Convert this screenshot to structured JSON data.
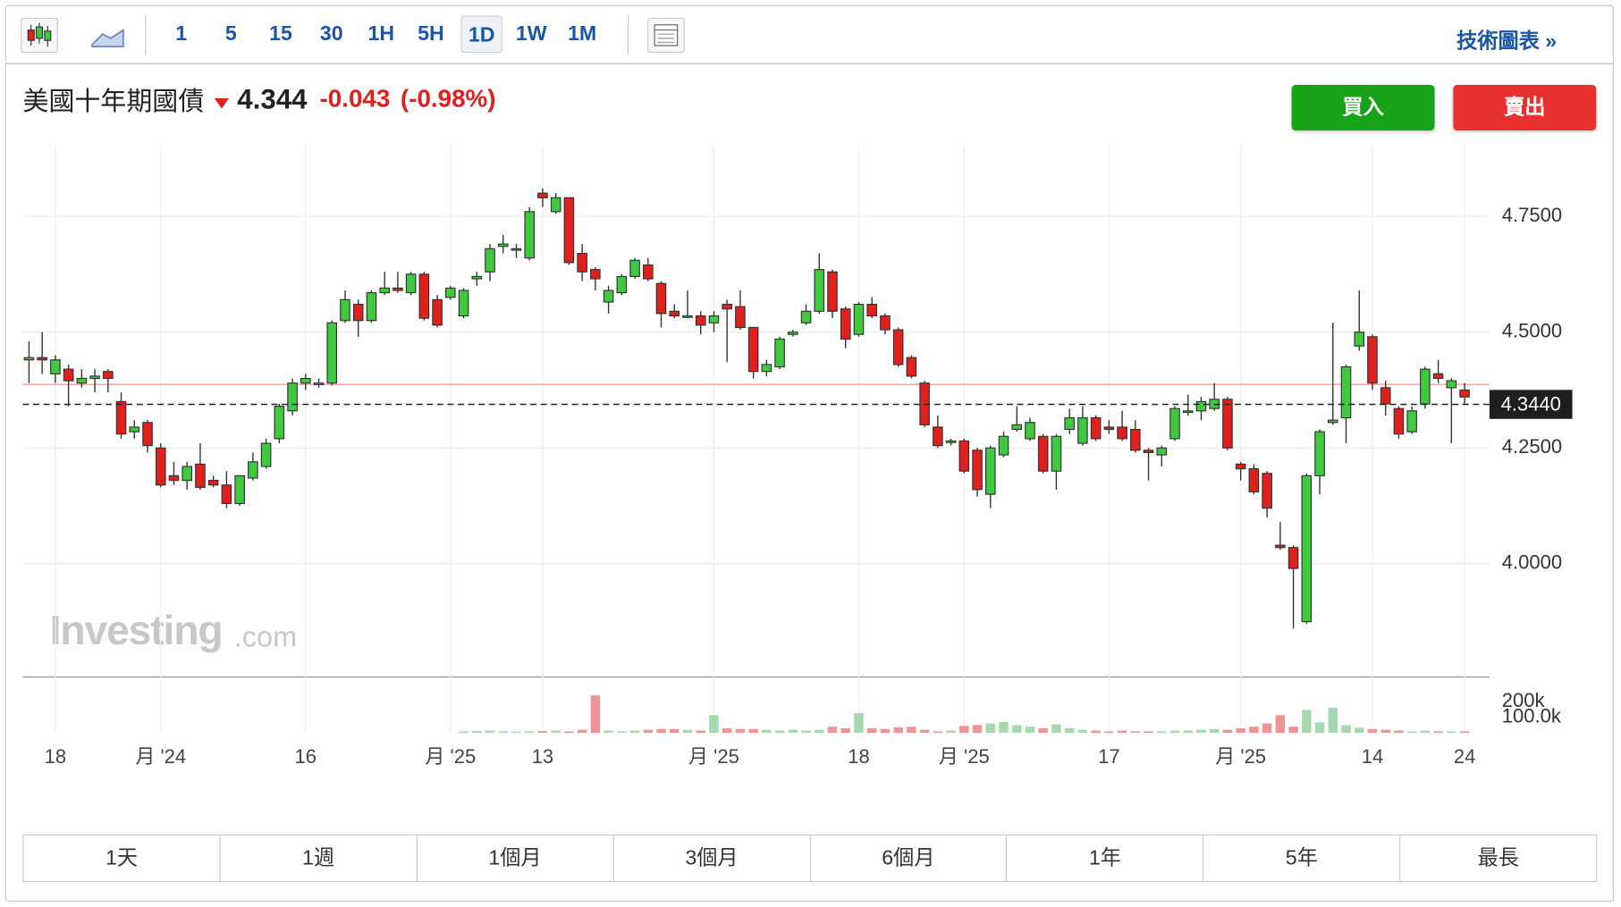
{
  "toolbar": {
    "intervals": [
      "1",
      "5",
      "15",
      "30",
      "1H",
      "5H",
      "1D",
      "1W",
      "1M"
    ],
    "link": "技術圖表 »"
  },
  "header": {
    "name": "美國十年期國債",
    "price": "4.344",
    "change": "-0.043",
    "change_pct": "(-0.98%)",
    "buy": "買入",
    "sell": "賣出"
  },
  "watermark": [
    "Investing",
    ".com"
  ],
  "ranges": [
    "1天",
    "1週",
    "1個月",
    "3個月",
    "6個月",
    "1年",
    "5年",
    "最長"
  ],
  "chart_data": {
    "type": "candlestick",
    "categories": [
      null,
      null,
      "18",
      null,
      null,
      null,
      null,
      null,
      null,
      null,
      "月 '24",
      null,
      null,
      null,
      null,
      null,
      null,
      null,
      null,
      null,
      null,
      "16",
      null,
      null,
      null,
      null,
      null,
      null,
      null,
      null,
      null,
      null,
      "月 '25",
      null,
      null,
      null,
      null,
      null,
      null,
      "13",
      null,
      null,
      null,
      null,
      null,
      null,
      null,
      null,
      null,
      null,
      null,
      null,
      "月 '25",
      null,
      null,
      null,
      null,
      null,
      null,
      null,
      null,
      null,
      null,
      "18",
      null,
      null,
      null,
      null,
      null,
      null,
      null,
      "月 '25",
      null,
      null,
      null,
      null,
      null,
      null,
      null,
      null,
      null,
      null,
      "17",
      null,
      null,
      null,
      null,
      null,
      null,
      null,
      null,
      null,
      "月 '25",
      null,
      null,
      null,
      null,
      null,
      null,
      null,
      null,
      null,
      "14",
      null,
      null,
      null,
      null,
      null,
      null,
      "24"
    ],
    "open": [
      4.44,
      4.445,
      4.41,
      4.42,
      4.39,
      4.4,
      4.415,
      4.35,
      4.285,
      4.305,
      4.25,
      4.19,
      4.18,
      4.215,
      4.18,
      4.17,
      4.13,
      4.185,
      4.21,
      4.27,
      4.33,
      4.39,
      4.39,
      4.39,
      4.525,
      4.56,
      4.525,
      4.585,
      4.595,
      4.585,
      4.625,
      4.57,
      4.575,
      4.535,
      4.615,
      4.63,
      4.685,
      4.68,
      4.66,
      4.8,
      4.76,
      4.79,
      4.67,
      4.635,
      4.565,
      4.585,
      4.62,
      4.645,
      4.605,
      4.545,
      4.535,
      4.535,
      4.52,
      4.56,
      4.555,
      4.51,
      4.415,
      4.425,
      4.495,
      4.52,
      4.545,
      4.63,
      4.55,
      4.495,
      4.56,
      4.535,
      4.505,
      4.445,
      4.39,
      4.295,
      4.265,
      4.265,
      4.245,
      4.15,
      4.235,
      4.29,
      4.27,
      4.275,
      4.2,
      4.29,
      4.26,
      4.315,
      4.295,
      4.295,
      4.29,
      4.245,
      4.235,
      4.27,
      4.33,
      4.33,
      4.335,
      4.355,
      4.215,
      4.205,
      4.195,
      4.04,
      4.035,
      3.875,
      4.19,
      4.305,
      4.315,
      4.47,
      4.49,
      4.38,
      4.335,
      4.285,
      4.345,
      4.41,
      4.38,
      4.375
    ],
    "high": [
      4.48,
      4.5,
      4.45,
      4.43,
      4.42,
      4.42,
      4.42,
      4.37,
      4.31,
      4.31,
      4.26,
      4.22,
      4.22,
      4.26,
      4.19,
      4.2,
      4.19,
      4.24,
      4.27,
      4.345,
      4.4,
      4.41,
      4.4,
      4.525,
      4.59,
      4.57,
      4.59,
      4.63,
      4.63,
      4.63,
      4.63,
      4.58,
      4.6,
      4.595,
      4.63,
      4.69,
      4.71,
      4.69,
      4.77,
      4.81,
      4.8,
      4.79,
      4.69,
      4.64,
      4.6,
      4.625,
      4.66,
      4.66,
      4.61,
      4.56,
      4.59,
      4.545,
      4.545,
      4.57,
      4.59,
      4.51,
      4.44,
      4.49,
      4.505,
      4.56,
      4.67,
      4.635,
      4.555,
      4.565,
      4.575,
      4.54,
      4.51,
      4.45,
      4.395,
      4.32,
      4.27,
      4.27,
      4.25,
      4.255,
      4.285,
      4.34,
      4.315,
      4.28,
      4.28,
      4.335,
      4.34,
      4.32,
      4.31,
      4.33,
      4.31,
      4.25,
      4.255,
      4.34,
      4.365,
      4.36,
      4.39,
      4.36,
      4.22,
      4.215,
      4.2,
      4.09,
      4.04,
      4.195,
      4.29,
      4.52,
      4.43,
      4.59,
      4.495,
      4.395,
      4.34,
      4.34,
      4.425,
      4.44,
      4.4,
      4.39
    ],
    "low": [
      4.39,
      4.41,
      4.39,
      4.34,
      4.38,
      4.37,
      4.37,
      4.27,
      4.27,
      4.24,
      4.165,
      4.17,
      4.16,
      4.16,
      4.165,
      4.12,
      4.125,
      4.18,
      4.205,
      4.26,
      4.32,
      4.375,
      4.38,
      4.385,
      4.52,
      4.49,
      4.52,
      4.58,
      4.585,
      4.58,
      4.525,
      4.51,
      4.57,
      4.53,
      4.6,
      4.61,
      4.67,
      4.66,
      4.655,
      4.77,
      4.755,
      4.645,
      4.61,
      4.59,
      4.54,
      4.58,
      4.615,
      4.61,
      4.51,
      4.53,
      4.53,
      4.495,
      4.5,
      4.435,
      4.505,
      4.4,
      4.405,
      4.42,
      4.49,
      4.515,
      4.54,
      4.53,
      4.465,
      4.49,
      4.53,
      4.495,
      4.425,
      4.4,
      4.295,
      4.25,
      4.255,
      4.195,
      4.145,
      4.12,
      4.23,
      4.285,
      4.265,
      4.195,
      4.16,
      4.28,
      4.255,
      4.265,
      4.28,
      4.265,
      4.24,
      4.18,
      4.21,
      4.265,
      4.32,
      4.31,
      4.33,
      4.245,
      4.18,
      4.15,
      4.1,
      4.03,
      3.86,
      3.87,
      4.15,
      4.3,
      4.26,
      4.46,
      4.375,
      4.32,
      4.27,
      4.28,
      4.335,
      4.39,
      4.26,
      4.345
    ],
    "close": [
      4.445,
      4.44,
      4.44,
      4.395,
      4.4,
      4.405,
      4.4,
      4.28,
      4.295,
      4.255,
      4.17,
      4.18,
      4.21,
      4.165,
      4.17,
      4.13,
      4.19,
      4.22,
      4.26,
      4.34,
      4.39,
      4.4,
      4.39,
      4.52,
      4.57,
      4.525,
      4.585,
      4.595,
      4.59,
      4.625,
      4.53,
      4.515,
      4.595,
      4.59,
      4.62,
      4.68,
      4.69,
      4.68,
      4.76,
      4.79,
      4.79,
      4.65,
      4.63,
      4.615,
      4.59,
      4.62,
      4.655,
      4.615,
      4.54,
      4.535,
      4.535,
      4.515,
      4.535,
      4.55,
      4.51,
      4.415,
      4.43,
      4.485,
      4.5,
      4.545,
      4.635,
      4.545,
      4.485,
      4.56,
      4.535,
      4.505,
      4.43,
      4.405,
      4.3,
      4.255,
      4.265,
      4.2,
      4.16,
      4.25,
      4.275,
      4.3,
      4.305,
      4.2,
      4.275,
      4.315,
      4.315,
      4.27,
      4.29,
      4.27,
      4.245,
      4.24,
      4.25,
      4.335,
      4.33,
      4.35,
      4.355,
      4.25,
      4.205,
      4.155,
      4.12,
      4.035,
      3.99,
      4.19,
      4.285,
      4.31,
      4.425,
      4.5,
      4.39,
      4.345,
      4.28,
      4.33,
      4.42,
      4.4,
      4.395,
      4.36
    ],
    "up_color": "#3ec93e",
    "down_color": "#e0201c",
    "ylim": [
      3.76,
      4.904
    ],
    "yticks": [
      {
        "value": 4.75,
        "label": "4.7500"
      },
      {
        "value": 4.5,
        "label": "4.5000"
      },
      {
        "value": 4.25,
        "label": "4.2500"
      },
      {
        "value": 4.0,
        "label": "4.0000"
      }
    ],
    "grid": true,
    "last": {
      "value": 4.344,
      "label": "4.3440"
    },
    "prev_close": 4.387,
    "volume": {
      "values": [
        0,
        0,
        0,
        0,
        0,
        0,
        0,
        0,
        0,
        0,
        0,
        0,
        0,
        0,
        0,
        0,
        0,
        0,
        0,
        0,
        0,
        0,
        0,
        0,
        0,
        0,
        0,
        0,
        0,
        0,
        0,
        0,
        0,
        10000,
        12000,
        15000,
        10000,
        8000,
        10000,
        12000,
        15000,
        10000,
        20000,
        240000,
        15000,
        10000,
        15000,
        20000,
        25000,
        25000,
        20000,
        15000,
        113000,
        30000,
        25000,
        25000,
        20000,
        15000,
        20000,
        15000,
        20000,
        40000,
        30000,
        127000,
        30000,
        25000,
        35000,
        40000,
        20000,
        10000,
        15000,
        45000,
        50000,
        60000,
        70000,
        50000,
        40000,
        30000,
        55000,
        30000,
        20000,
        15000,
        10000,
        15000,
        10000,
        10000,
        10000,
        15000,
        15000,
        20000,
        25000,
        20000,
        30000,
        40000,
        60000,
        113000,
        40000,
        147000,
        67000,
        160000,
        50000,
        33000,
        25000,
        20000,
        15000,
        10000,
        15000,
        10000,
        10000,
        10000
      ],
      "up_color": "#a5d9ae",
      "down_color": "#ef9494",
      "ylim": [
        0,
        350000
      ],
      "yticks": [
        {
          "value": 200000,
          "label": "200k"
        },
        {
          "value": 100000,
          "label": "100.0k"
        }
      ]
    }
  }
}
